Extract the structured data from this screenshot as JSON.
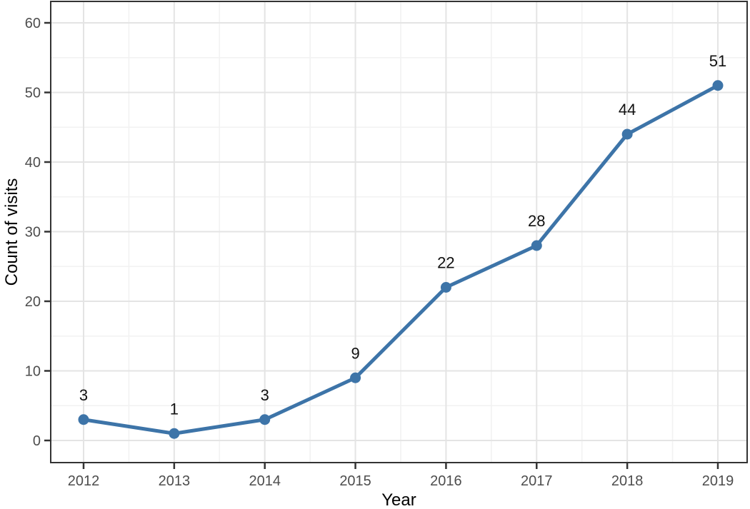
{
  "figure": {
    "background": "#ffffff"
  },
  "chart_data": {
    "type": "line",
    "title": "",
    "xlabel": "Year",
    "ylabel": "Count of visits",
    "x": [
      2012,
      2013,
      2014,
      2015,
      2016,
      2017,
      2018,
      2019
    ],
    "series": [
      {
        "name": "Count of visits",
        "values": [
          3,
          1,
          3,
          9,
          22,
          28,
          44,
          51
        ]
      }
    ],
    "point_labels": [
      "3",
      "1",
      "3",
      "9",
      "22",
      "28",
      "44",
      "51"
    ],
    "xticks": [
      "2012",
      "2013",
      "2014",
      "2015",
      "2016",
      "2017",
      "2018",
      "2019"
    ],
    "yticks": [
      0,
      10,
      20,
      30,
      40,
      50,
      60
    ],
    "y_minor_ticks": [
      5,
      15,
      25,
      35,
      45,
      55
    ],
    "ylim": [
      0,
      63
    ],
    "grid": "major-and-minor",
    "legend_position": "none",
    "colors": {
      "line": "#3d74a8",
      "point": "#3d74a8",
      "grid_major": "#e4e4e4",
      "grid_minor": "#f2f2f2",
      "panel_border": "#333333",
      "tick_mark": "#333333",
      "tick_label": "#4d4d4d",
      "axis_title": "#000000",
      "data_label": "#111111"
    }
  }
}
